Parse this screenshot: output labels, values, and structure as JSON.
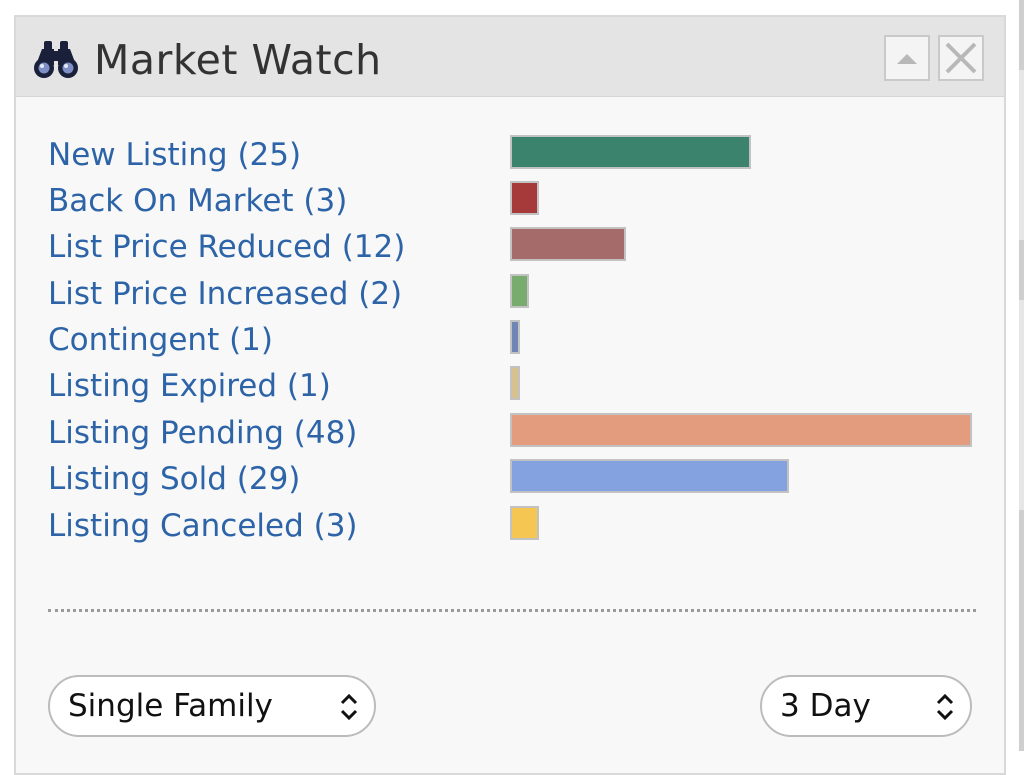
{
  "widget": {
    "title": "Market Watch",
    "icon": "binoculars-icon",
    "buttons": {
      "collapse_icon": "triangle-up-icon",
      "close_icon": "close-icon"
    }
  },
  "colors": {
    "link": "#2d64a8",
    "header_bg": "#e4e4e4"
  },
  "listings": [
    {
      "label": "New Listing (25)",
      "count": 25,
      "color": "#3c836d"
    },
    {
      "label": "Back On Market (3)",
      "count": 3,
      "color": "#a63a3a"
    },
    {
      "label": "List Price Reduced (12)",
      "count": 12,
      "color": "#a56a6a"
    },
    {
      "label": "List Price Increased (2)",
      "count": 2,
      "color": "#78ac6e"
    },
    {
      "label": "Contingent (1)",
      "count": 1,
      "color": "#6f86b5"
    },
    {
      "label": "Listing Expired (1)",
      "count": 1,
      "color": "#d7c28f"
    },
    {
      "label": "Listing Pending (48)",
      "count": 48,
      "color": "#e39c7e"
    },
    {
      "label": "Listing Sold (29)",
      "count": 29,
      "color": "#83a2df"
    },
    {
      "label": "Listing Canceled (3)",
      "count": 3,
      "color": "#f5c652"
    }
  ],
  "chart_data": {
    "type": "bar",
    "categories": [
      "New Listing",
      "Back On Market",
      "List Price Reduced",
      "List Price Increased",
      "Contingent",
      "Listing Expired",
      "Listing Pending",
      "Listing Sold",
      "Listing Canceled"
    ],
    "values": [
      25,
      3,
      12,
      2,
      1,
      1,
      48,
      29,
      3
    ],
    "orientation": "horizontal",
    "max": 48
  },
  "filters": {
    "property_type": {
      "selected": "Single Family"
    },
    "period": {
      "selected": "3 Day"
    }
  }
}
